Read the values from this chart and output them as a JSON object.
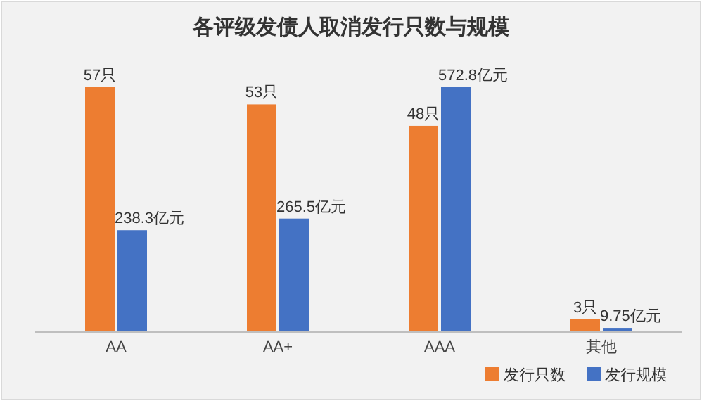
{
  "chart_data": {
    "type": "bar",
    "title": "各评级发债人取消发行只数与规模",
    "categories": [
      "AA",
      "AA+",
      "AAA",
      "其他"
    ],
    "series": [
      {
        "name": "发行只数",
        "color": "#ed7d31",
        "values": [
          57,
          53,
          48,
          3
        ],
        "value_labels": [
          "57只",
          "53只",
          "48只",
          "3只"
        ]
      },
      {
        "name": "发行规模",
        "color": "#4472c4",
        "axis": "y2",
        "values": [
          238.3,
          265.5,
          572.8,
          9.75
        ],
        "value_labels": [
          "238.3亿元",
          "265.5亿元",
          "572.8亿元",
          "9.75亿元"
        ]
      }
    ],
    "tick_labels": "x",
    "legend": "bottom right"
  }
}
